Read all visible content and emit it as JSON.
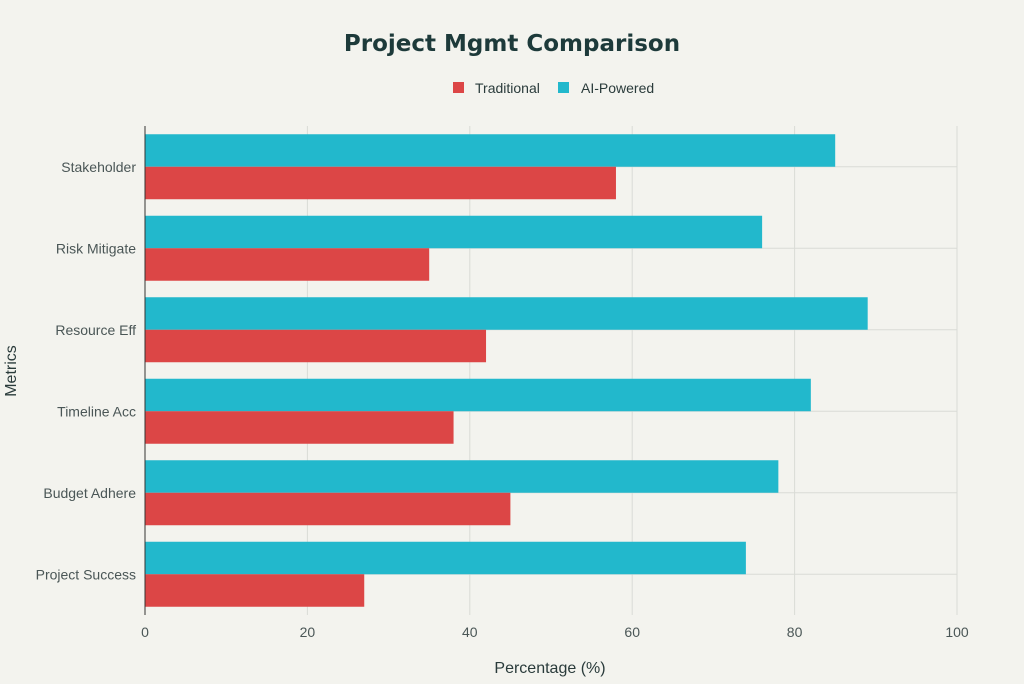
{
  "chart_data": {
    "type": "bar",
    "orientation": "horizontal",
    "title": "Project Mgmt Comparison",
    "xlabel": "Percentage (%)",
    "ylabel": "Metrics",
    "xlim": [
      0,
      100
    ],
    "xticks": [
      0,
      20,
      40,
      60,
      80,
      100
    ],
    "grid": true,
    "legend_position": "top-center",
    "categories": [
      "Project Success",
      "Budget Adhere",
      "Timeline Acc",
      "Resource Eff",
      "Risk Mitigate",
      "Stakeholder"
    ],
    "series": [
      {
        "name": "Traditional",
        "color": "#dc4646",
        "values": [
          27,
          45,
          38,
          42,
          35,
          58
        ]
      },
      {
        "name": "AI-Powered",
        "color": "#22b8cc",
        "values": [
          74,
          78,
          82,
          89,
          76,
          85
        ]
      }
    ]
  }
}
